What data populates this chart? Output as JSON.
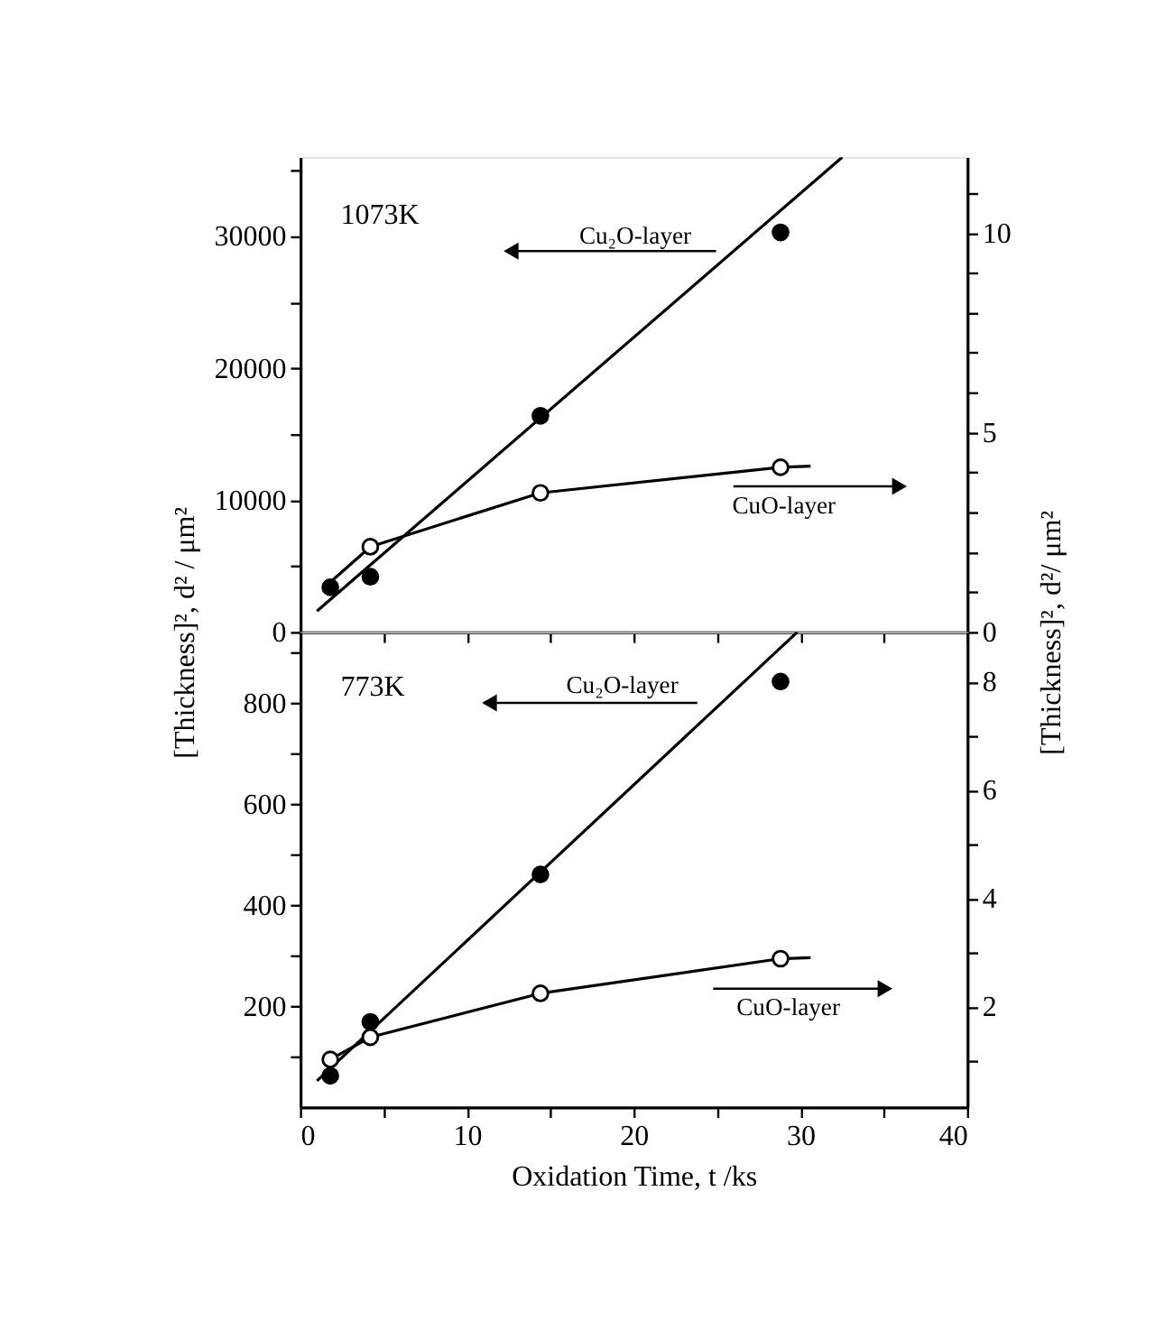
{
  "chart_data": [
    {
      "type": "scatter",
      "xlim": [
        0,
        40
      ],
      "xticks": [
        {
          "value": 0,
          "label": null
        },
        {
          "value": 5,
          "label": null
        },
        {
          "value": 10,
          "label": null
        },
        {
          "value": 15,
          "label": null
        },
        {
          "value": 20,
          "label": null
        },
        {
          "value": 25,
          "label": null
        },
        {
          "value": 30,
          "label": null
        },
        {
          "value": 35,
          "label": null
        },
        {
          "value": 40,
          "label": null
        }
      ],
      "ylim": [
        0,
        36000
      ],
      "yticks": [
        0,
        {
          "value": 5000,
          "label": null
        },
        10000,
        {
          "value": 15000,
          "label": null
        },
        20000,
        {
          "value": 25000,
          "label": null
        },
        30000,
        {
          "value": 35000,
          "label": null
        }
      ],
      "y2lim": [
        0,
        11.9
      ],
      "y2ticks": [
        0,
        {
          "value": 1,
          "label": null
        },
        {
          "value": 2,
          "label": null
        },
        {
          "value": 3,
          "label": null
        },
        {
          "value": 4,
          "label": null
        },
        5,
        {
          "value": 6,
          "label": null
        },
        {
          "value": 7,
          "label": null
        },
        {
          "value": 8,
          "label": null
        },
        {
          "value": 9,
          "label": null
        },
        10,
        {
          "value": 11,
          "label": null
        }
      ],
      "ylabel": "[Thickness]², d² / μm²",
      "y2label": "[Thickness]², d²/ μm²",
      "tick_labels": "y",
      "grid": false,
      "marker": "circle",
      "annotations": [
        "1073K",
        "Cu₂O-layer",
        "CuO-layer"
      ],
      "series": [
        {
          "color": "#000000",
          "x": [
            1.8,
            4.2,
            14.4,
            28.8
          ],
          "values": [
            3400,
            4200,
            16400,
            30300
          ]
        },
        {
          "type": "line",
          "marker": "none",
          "color": "#000000",
          "x": [
            1.0,
            32.5
          ],
          "values": [
            1600,
            36000
          ]
        },
        {
          "type": "line",
          "marker": "none",
          "axis": "y2",
          "color": "#000000",
          "x": [
            1.8,
            4.2,
            14.4,
            28.8,
            30.6
          ],
          "values": [
            1.25,
            2.14,
            3.49,
            4.13,
            4.16
          ]
        },
        {
          "axis": "y2",
          "color": "#000000",
          "x": [
            4.2,
            14.4,
            28.8
          ],
          "values": [
            2.14,
            3.49,
            4.13
          ]
        }
      ]
    },
    {
      "type": "scatter",
      "xlim": [
        0,
        40
      ],
      "xticks": [
        0,
        {
          "value": 5,
          "label": null
        },
        10,
        {
          "value": 15,
          "label": null
        },
        20,
        {
          "value": 25,
          "label": null
        },
        30,
        {
          "value": 35,
          "label": null
        },
        40
      ],
      "ylim": [
        0,
        941
      ],
      "yticks": [
        {
          "value": 100,
          "label": null
        },
        200,
        {
          "value": 300,
          "label": null
        },
        400,
        {
          "value": 500,
          "label": null
        },
        600,
        {
          "value": 700,
          "label": null
        },
        800,
        {
          "value": 900,
          "label": null
        }
      ],
      "y2lim": [
        0.15,
        8.92
      ],
      "y2ticks": [
        {
          "value": 1,
          "label": null
        },
        2,
        {
          "value": 3,
          "label": null
        },
        4,
        {
          "value": 5,
          "label": null
        },
        6,
        {
          "value": 7,
          "label": null
        },
        8
      ],
      "xlabel": "Oxidation Time,  t /ks",
      "grid": false,
      "marker": "circle",
      "annotations": [
        "773K",
        "Cu₂O-layer",
        "CuO-layer"
      ],
      "series": [
        {
          "color": "#000000",
          "x": [
            1.8,
            4.2,
            14.4,
            28.8
          ],
          "values": [
            62,
            169,
            461,
            843
          ]
        },
        {
          "type": "line",
          "marker": "none",
          "color": "#000000",
          "x": [
            1.0,
            29.8
          ],
          "values": [
            52,
            941
          ]
        },
        {
          "type": "line",
          "marker": "none",
          "axis": "y2",
          "color": "#000000",
          "x": [
            1.8,
            4.2,
            14.4,
            28.8,
            30.6
          ],
          "values": [
            1.03,
            1.44,
            2.25,
            2.89,
            2.91
          ]
        },
        {
          "axis": "y2",
          "color": "#000000",
          "x": [
            1.8,
            4.2,
            14.4,
            28.8
          ],
          "values": [
            1.03,
            1.44,
            2.25,
            2.89
          ]
        }
      ]
    }
  ]
}
